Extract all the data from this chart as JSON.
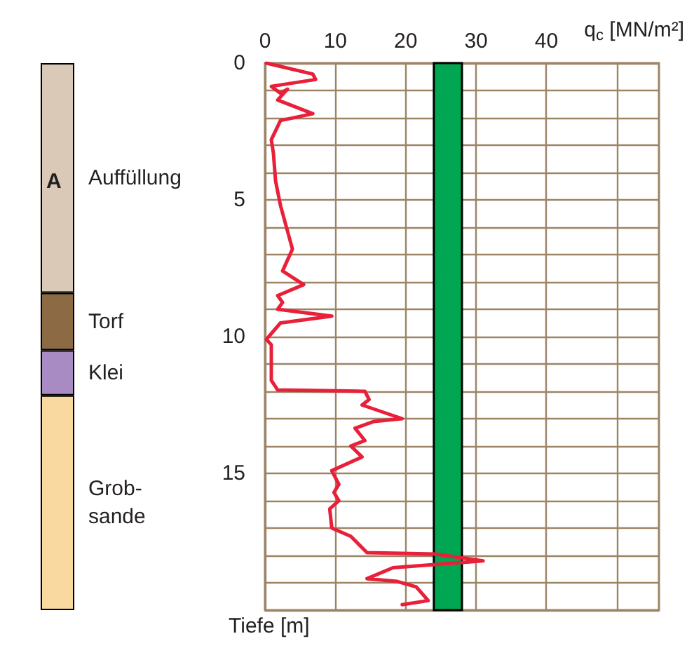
{
  "chart_data": [
    {
      "type": "bar",
      "stacked": true,
      "categories": [
        null
      ],
      "ylim": [
        20,
        0
      ],
      "tick_labels": false,
      "legend": false,
      "annotations": [
        "A"
      ],
      "series": [
        {
          "name": "Auffüllung",
          "color": "#d9c9b6",
          "values": [
            8.4
          ]
        },
        {
          "name": "Torf",
          "color": "#8c6a44",
          "values": [
            2.1
          ]
        },
        {
          "name": "Klei",
          "color": "#a98bc4",
          "values": [
            1.65
          ]
        },
        {
          "name": "Grob-\nsande",
          "color": "#f9d9a0",
          "values": [
            7.85
          ]
        }
      ]
    },
    {
      "type": "line",
      "xlabel": "q$_{c}$ [MN/m²]",
      "ylabel": "Tiefe [m]",
      "xlim": [
        0,
        56
      ],
      "ylim": [
        20,
        0
      ],
      "grid": true,
      "legend": false,
      "marker": "none",
      "line_style": "solid",
      "xticks": [
        0,
        10,
        20,
        30,
        40,
        {
          "value": 50,
          "label": null
        }
      ],
      "yticks": [
        0,
        {
          "value": 1,
          "label": null
        },
        {
          "value": 2,
          "label": null
        },
        {
          "value": 3,
          "label": null
        },
        {
          "value": 4,
          "label": null
        },
        5,
        {
          "value": 6,
          "label": null
        },
        {
          "value": 7,
          "label": null
        },
        {
          "value": 8,
          "label": null
        },
        {
          "value": 9,
          "label": null
        },
        10,
        {
          "value": 11,
          "label": null
        },
        {
          "value": 12,
          "label": null
        },
        {
          "value": 13,
          "label": null
        },
        {
          "value": 14,
          "label": null
        },
        15,
        {
          "value": 16,
          "label": null
        },
        {
          "value": 17,
          "label": null
        },
        {
          "value": 18,
          "label": null
        },
        {
          "value": 19,
          "label": null
        },
        {
          "value": 20,
          "label": null
        }
      ],
      "bands": [
        {
          "axis": "x",
          "from": 24,
          "to": 28,
          "color": "#00a651"
        }
      ],
      "series": [
        {
          "color": "#e8203a",
          "x": [
            0.2,
            6.8,
            7.2,
            0.9,
            2.2,
            3.2,
            1.8,
            6.8,
            2.2,
            0.9,
            1.2,
            1.5,
            2.2,
            3.9,
            2.5,
            5.5,
            1.8,
            2.5,
            1.8,
            9.5,
            2.2,
            0.2,
            0.9,
            0.9,
            1.8,
            14.2,
            14.8,
            13.8,
            19.5,
            15.5,
            12.8,
            14.2,
            12.2,
            13.8,
            9.5,
            10.5,
            9.8,
            10.5,
            9.2,
            9.5,
            12.2,
            14.5,
            24.2,
            31,
            18.2,
            14.5,
            18.8,
            21.5,
            23.2,
            19.5
          ],
          "values": [
            0,
            0.4,
            0.6,
            0.85,
            1.1,
            0.95,
            1.35,
            1.85,
            2.1,
            2.8,
            3.3,
            4.3,
            5.2,
            6.8,
            7.6,
            8.1,
            8.5,
            8.75,
            9.0,
            9.25,
            9.5,
            10.1,
            10.3,
            11.6,
            11.95,
            12.0,
            12.3,
            12.5,
            13.0,
            13.1,
            13.35,
            13.8,
            14.0,
            14.4,
            14.9,
            15.4,
            15.7,
            16.0,
            16.3,
            17.0,
            17.3,
            17.9,
            17.95,
            18.2,
            18.45,
            18.85,
            18.95,
            19.15,
            19.65,
            19.8
          ]
        }
      ]
    }
  ]
}
